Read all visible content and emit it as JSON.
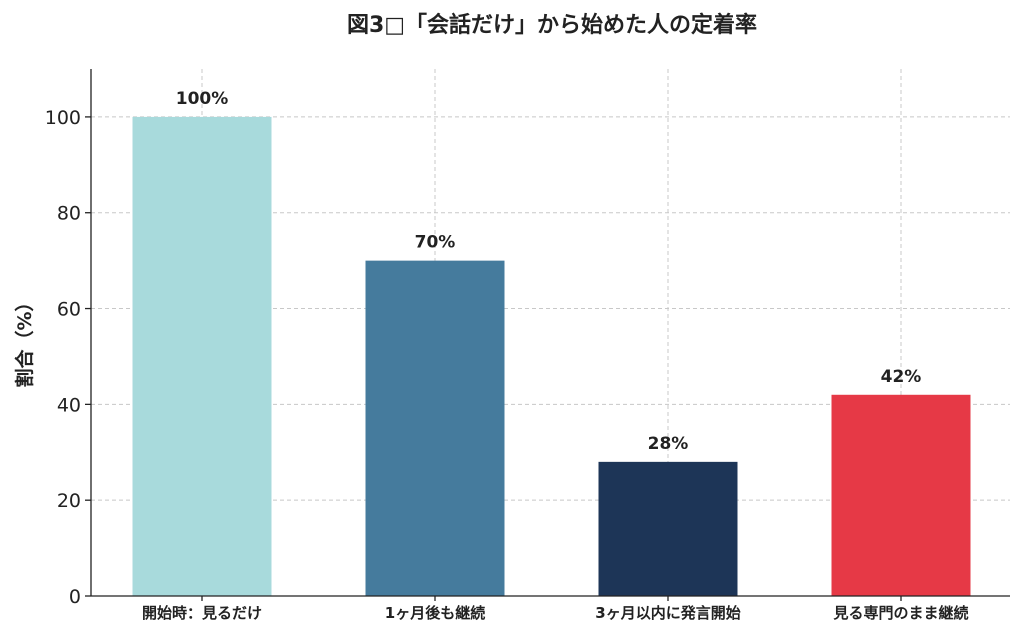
{
  "chart_data": {
    "type": "bar",
    "title": "図3□「会話だけ」から始めた人の定着率",
    "xlabel": "",
    "ylabel": "割合（%）",
    "categories": [
      "開始時：見るだけ",
      "1ヶ月後も継続",
      "3ヶ月以内に発言開始",
      "見る専門のまま継続"
    ],
    "values": [
      100,
      70,
      28,
      42
    ],
    "data_labels": [
      "100%",
      "70%",
      "28%",
      "42%"
    ],
    "colors": [
      "#a8dadc",
      "#457b9d",
      "#1d3557",
      "#e63946"
    ],
    "ylim": [
      0,
      110
    ],
    "yticks": [
      0,
      20,
      40,
      60,
      80,
      100
    ],
    "grid": true
  }
}
